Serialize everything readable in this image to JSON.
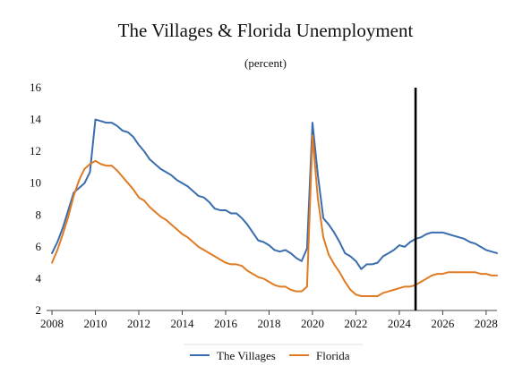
{
  "chart_data": {
    "type": "line",
    "title": "The Villages & Florida Unemployment",
    "subtitle": "(percent)",
    "xlabel": "",
    "ylabel": "",
    "xlim": [
      2007.75,
      2028.5
    ],
    "ylim": [
      2,
      16
    ],
    "x_ticks": [
      2008,
      2010,
      2012,
      2014,
      2016,
      2018,
      2020,
      2022,
      2024,
      2026,
      2028
    ],
    "y_ticks": [
      2,
      4,
      6,
      8,
      10,
      12,
      14,
      16
    ],
    "grid": false,
    "legend_position": "bottom",
    "vertical_marker_x": 2024.75,
    "series": [
      {
        "name": "The Villages",
        "color": "#3A6DAE",
        "x": [
          2008.0,
          2008.25,
          2008.5,
          2008.75,
          2009.0,
          2009.25,
          2009.5,
          2009.75,
          2010.0,
          2010.25,
          2010.5,
          2010.75,
          2011.0,
          2011.25,
          2011.5,
          2011.75,
          2012.0,
          2012.25,
          2012.5,
          2012.75,
          2013.0,
          2013.25,
          2013.5,
          2013.75,
          2014.0,
          2014.25,
          2014.5,
          2014.75,
          2015.0,
          2015.25,
          2015.5,
          2015.75,
          2016.0,
          2016.25,
          2016.5,
          2016.75,
          2017.0,
          2017.25,
          2017.5,
          2017.75,
          2018.0,
          2018.25,
          2018.5,
          2018.75,
          2019.0,
          2019.25,
          2019.5,
          2019.75,
          2020.0,
          2020.25,
          2020.5,
          2020.75,
          2021.0,
          2021.25,
          2021.5,
          2021.75,
          2022.0,
          2022.25,
          2022.5,
          2022.75,
          2023.0,
          2023.25,
          2023.5,
          2023.75,
          2024.0,
          2024.25,
          2024.5,
          2024.75,
          2025.0,
          2025.25,
          2025.5,
          2025.75,
          2026.0,
          2026.25,
          2026.5,
          2026.75,
          2027.0,
          2027.25,
          2027.5,
          2027.75,
          2028.0,
          2028.25,
          2028.5
        ],
        "values": [
          5.6,
          6.3,
          7.2,
          8.3,
          9.4,
          9.7,
          10.0,
          10.7,
          14.0,
          13.9,
          13.8,
          13.8,
          13.6,
          13.3,
          13.2,
          12.9,
          12.4,
          12.0,
          11.5,
          11.2,
          10.9,
          10.7,
          10.5,
          10.2,
          10.0,
          9.8,
          9.5,
          9.2,
          9.1,
          8.8,
          8.4,
          8.3,
          8.3,
          8.1,
          8.1,
          7.8,
          7.4,
          6.9,
          6.4,
          6.3,
          6.1,
          5.8,
          5.7,
          5.8,
          5.6,
          5.3,
          5.1,
          5.9,
          13.8,
          10.5,
          7.8,
          7.4,
          6.9,
          6.3,
          5.6,
          5.4,
          5.1,
          4.6,
          4.9,
          4.9,
          5.0,
          5.4,
          5.6,
          5.8,
          6.1,
          6.0,
          6.3,
          6.5,
          6.6,
          6.8,
          6.9,
          6.9,
          6.9,
          6.8,
          6.7,
          6.6,
          6.5,
          6.3,
          6.2,
          6.0,
          5.8,
          5.7,
          5.6
        ]
      },
      {
        "name": "Florida",
        "color": "#E07B24",
        "x": [
          2008.0,
          2008.25,
          2008.5,
          2008.75,
          2009.0,
          2009.25,
          2009.5,
          2009.75,
          2010.0,
          2010.25,
          2010.5,
          2010.75,
          2011.0,
          2011.25,
          2011.5,
          2011.75,
          2012.0,
          2012.25,
          2012.5,
          2012.75,
          2013.0,
          2013.25,
          2013.5,
          2013.75,
          2014.0,
          2014.25,
          2014.5,
          2014.75,
          2015.0,
          2015.25,
          2015.5,
          2015.75,
          2016.0,
          2016.25,
          2016.5,
          2016.75,
          2017.0,
          2017.25,
          2017.5,
          2017.75,
          2018.0,
          2018.25,
          2018.5,
          2018.75,
          2019.0,
          2019.25,
          2019.5,
          2019.75,
          2020.0,
          2020.25,
          2020.5,
          2020.75,
          2021.0,
          2021.25,
          2021.5,
          2021.75,
          2022.0,
          2022.25,
          2022.5,
          2022.75,
          2023.0,
          2023.25,
          2023.5,
          2023.75,
          2024.0,
          2024.25,
          2024.5,
          2024.75,
          2025.0,
          2025.25,
          2025.5,
          2025.75,
          2026.0,
          2026.25,
          2026.5,
          2026.75,
          2027.0,
          2027.25,
          2027.5,
          2027.75,
          2028.0,
          2028.25,
          2028.5
        ],
        "values": [
          5.0,
          5.8,
          6.8,
          7.9,
          9.2,
          10.2,
          10.9,
          11.2,
          11.4,
          11.2,
          11.1,
          11.1,
          10.8,
          10.4,
          10.0,
          9.6,
          9.1,
          8.9,
          8.5,
          8.2,
          7.9,
          7.7,
          7.4,
          7.1,
          6.8,
          6.6,
          6.3,
          6.0,
          5.8,
          5.6,
          5.4,
          5.2,
          5.0,
          4.9,
          4.9,
          4.8,
          4.5,
          4.3,
          4.1,
          4.0,
          3.8,
          3.6,
          3.5,
          3.5,
          3.3,
          3.2,
          3.2,
          3.5,
          13.0,
          9.0,
          6.6,
          5.5,
          4.9,
          4.4,
          3.8,
          3.3,
          3.0,
          2.9,
          2.9,
          2.9,
          2.9,
          3.1,
          3.2,
          3.3,
          3.4,
          3.5,
          3.5,
          3.6,
          3.8,
          4.0,
          4.2,
          4.3,
          4.3,
          4.4,
          4.4,
          4.4,
          4.4,
          4.4,
          4.4,
          4.3,
          4.3,
          4.2,
          4.2
        ]
      }
    ]
  }
}
